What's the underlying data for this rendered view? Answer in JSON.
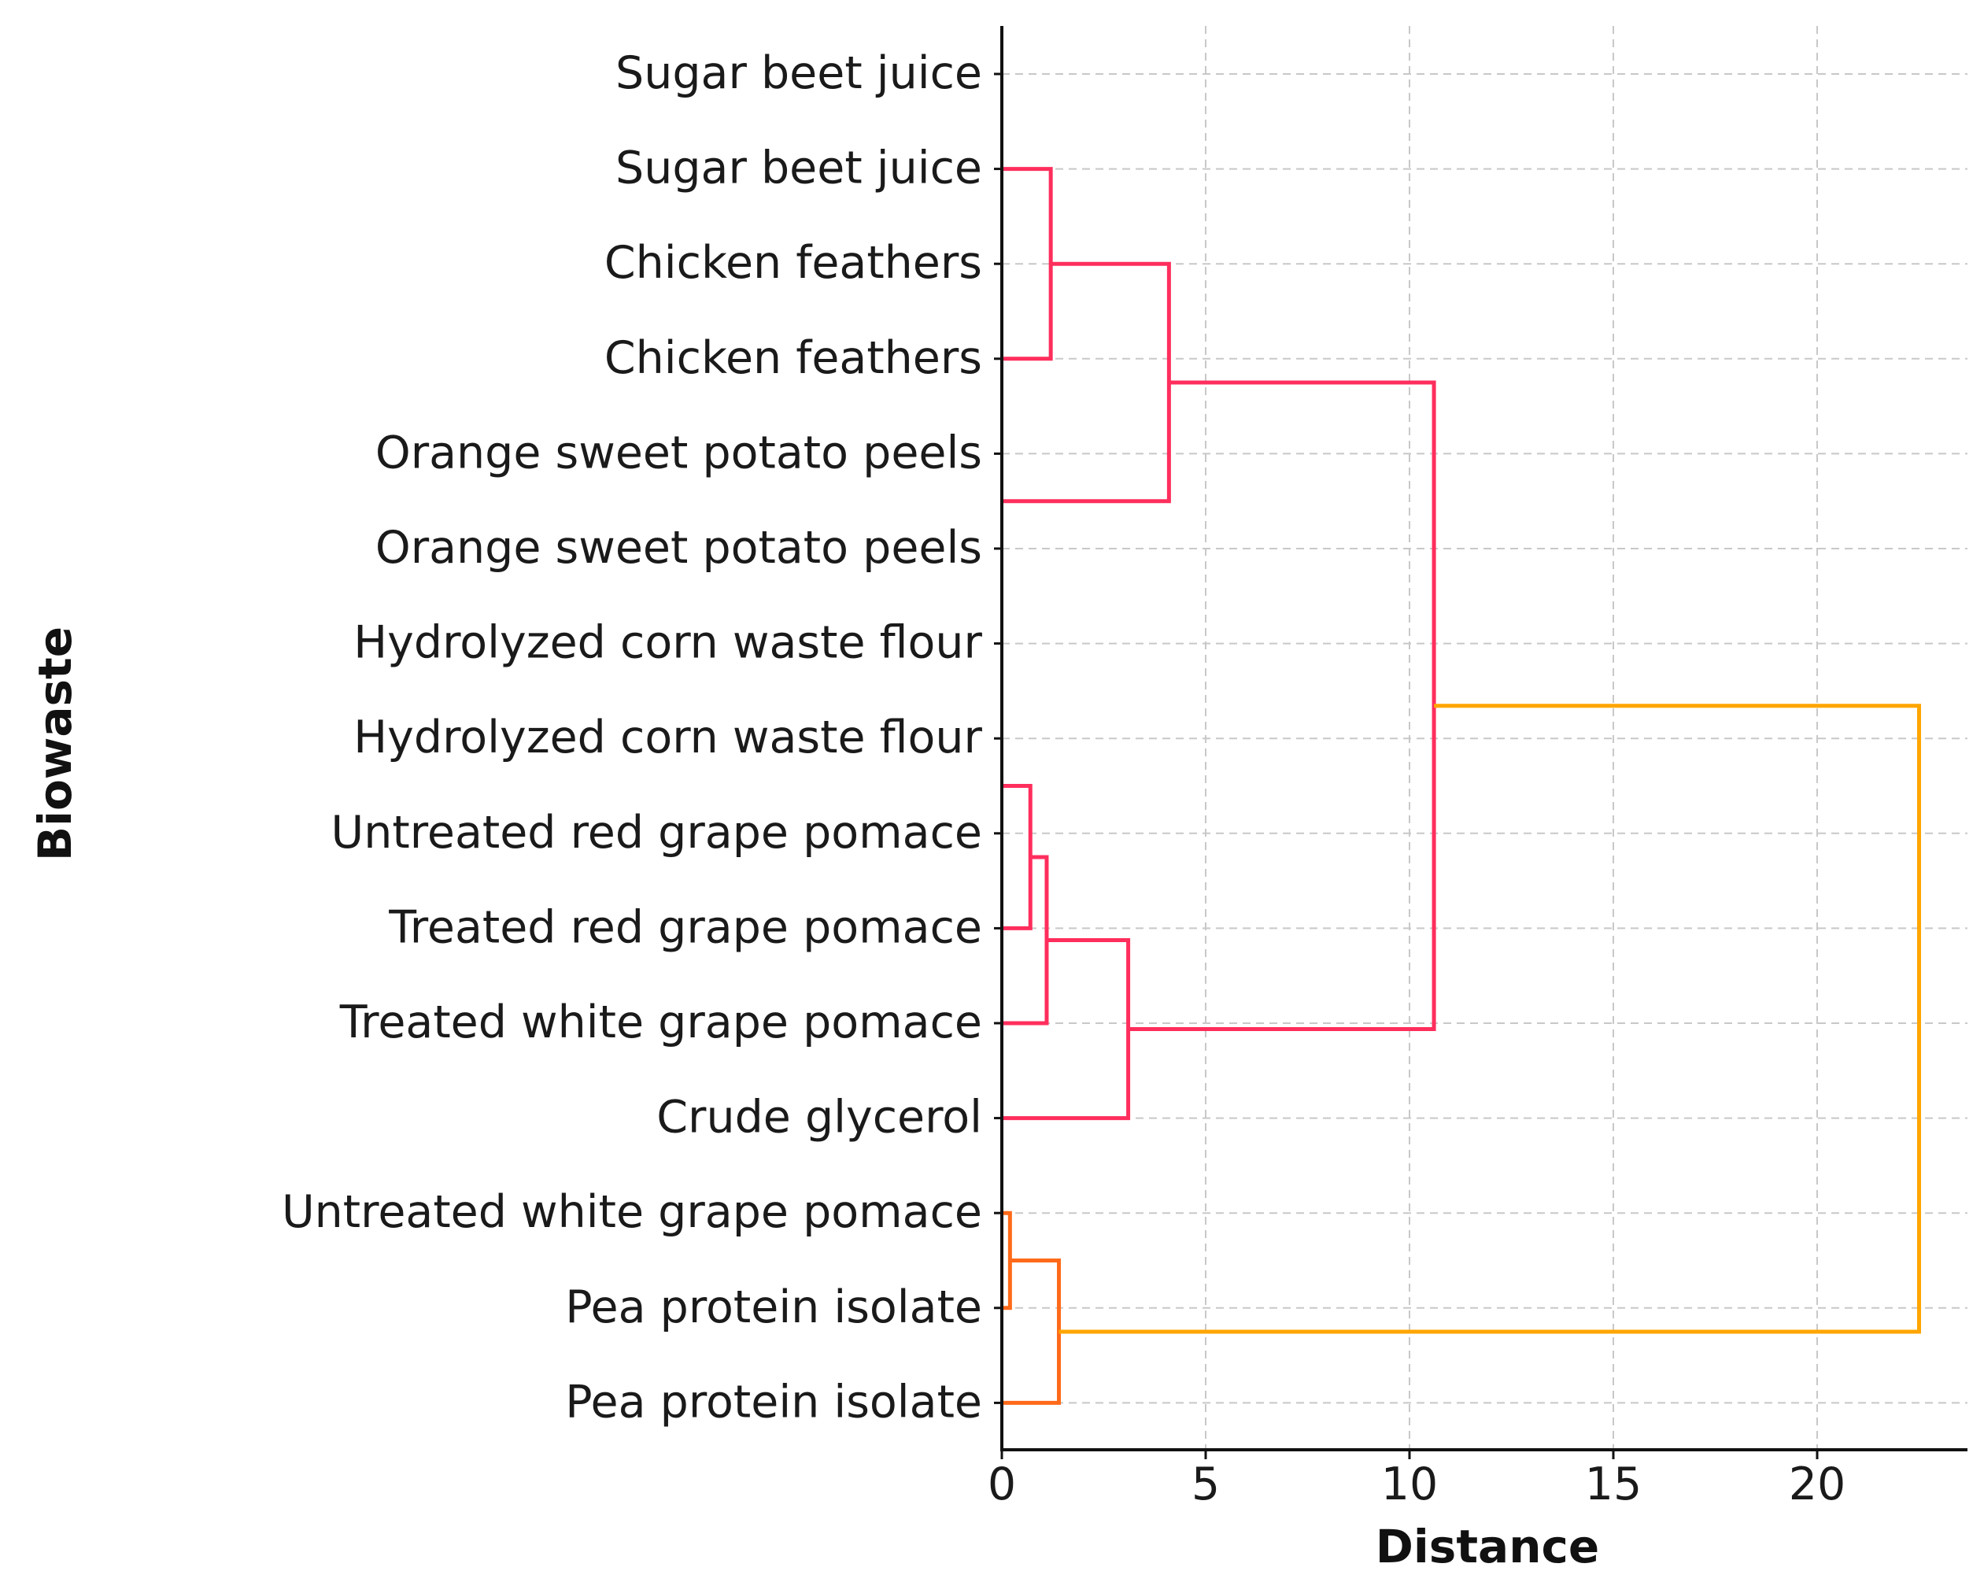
{
  "chart_data": {
    "type": "dendrogram",
    "orientation": "horizontal",
    "xlabel": "Distance",
    "ylabel": "Biowaste",
    "xlim": [
      0,
      23.7
    ],
    "xticks": [
      0,
      5,
      10,
      15,
      20
    ],
    "grid": true,
    "leaves": [
      "Sugar beet juice",
      "Sugar beet juice",
      "Chicken feathers",
      "Chicken feathers",
      "Orange sweet potato peels",
      "Orange sweet potato peels",
      "Hydrolyzed corn waste flour",
      "Hydrolyzed corn waste flour",
      "Untreated red grape pomace",
      "Treated red grape pomace",
      "Treated white grape pomace",
      "Crude glycerol",
      "Untreated white grape pomace",
      "Pea protein isolate",
      "Pea protein isolate"
    ],
    "links": [
      {
        "name": "merge-1",
        "ya": 1.0,
        "xa": 0.0,
        "yb": 3.0,
        "xb": 0.0,
        "distance": 1.2,
        "color": "#ff2e5c"
      },
      {
        "name": "merge-2",
        "ya": 2.0,
        "xa": 1.2,
        "yb": 4.5,
        "xb": 0.0,
        "distance": 4.1,
        "color": "#ff2e5c"
      },
      {
        "name": "merge-3",
        "ya": 7.5,
        "xa": 0.0,
        "yb": 9.0,
        "xb": 0.0,
        "distance": 0.7,
        "color": "#ff2e5c"
      },
      {
        "name": "merge-4",
        "ya": 8.25,
        "xa": 0.7,
        "yb": 10.0,
        "xb": 0.0,
        "distance": 1.1,
        "color": "#ff2e5c"
      },
      {
        "name": "merge-5",
        "ya": 9.125,
        "xa": 1.1,
        "yb": 11.0,
        "xb": 0.0,
        "distance": 3.1,
        "color": "#ff2e5c"
      },
      {
        "name": "merge-6",
        "ya": 3.25,
        "xa": 4.1,
        "yb": 10.0625,
        "xb": 3.1,
        "distance": 10.6,
        "color": "#ff2e5c"
      },
      {
        "name": "merge-7",
        "ya": 12.0,
        "xa": 0.0,
        "yb": 13.0,
        "xb": 0.0,
        "distance": 0.2,
        "color": "#ff6a1a"
      },
      {
        "name": "merge-8",
        "ya": 12.5,
        "xa": 0.2,
        "yb": 14.0,
        "xb": 0.0,
        "distance": 1.4,
        "color": "#ff6a1a"
      },
      {
        "name": "merge-9",
        "ya": 6.65625,
        "xa": 10.6,
        "yb": 13.25,
        "xb": 1.4,
        "distance": 22.5,
        "color": "#ffa500"
      }
    ]
  }
}
